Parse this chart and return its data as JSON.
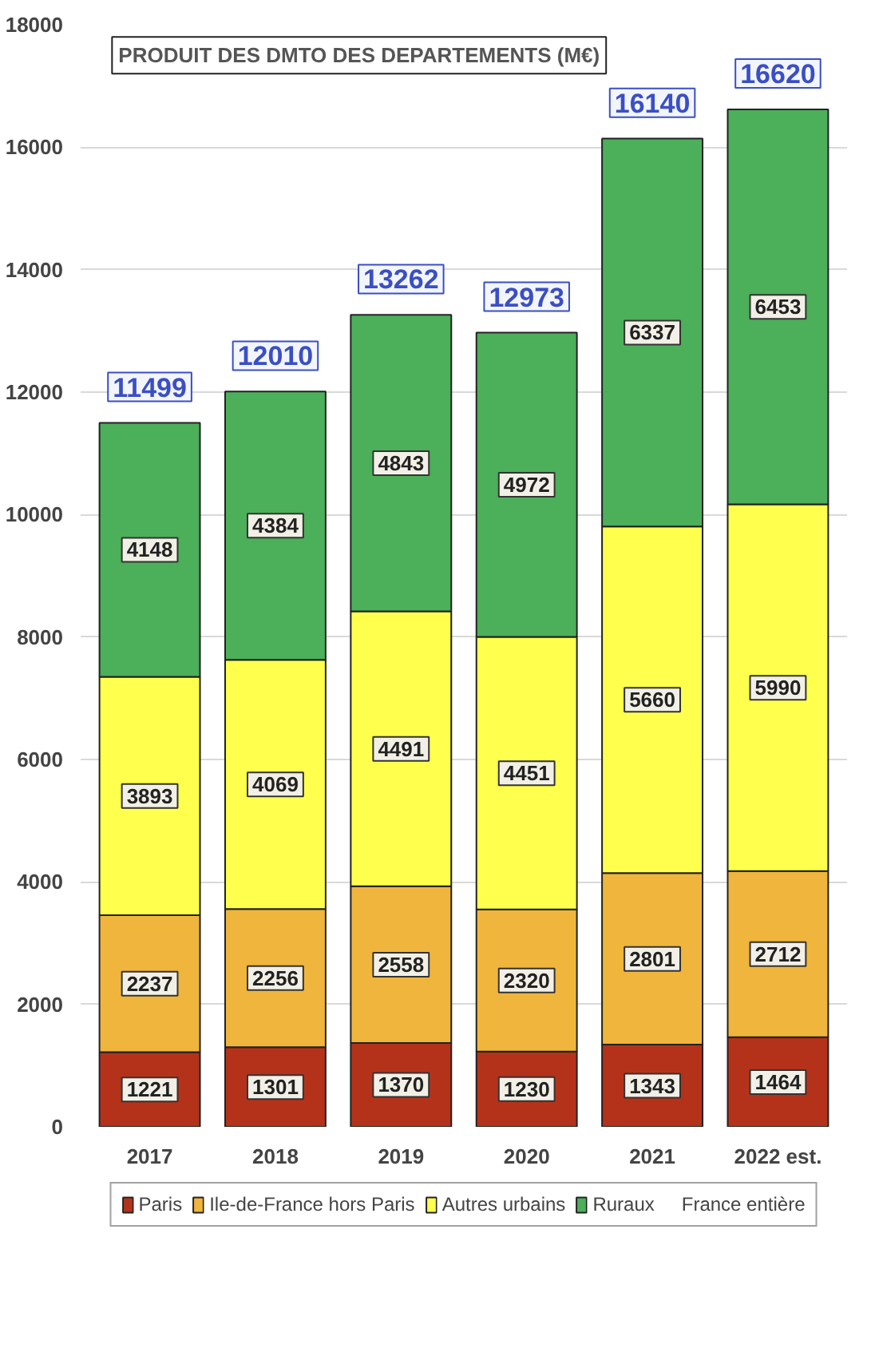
{
  "chart_data": {
    "type": "bar",
    "title": "PRODUIT DES DMTO DES DEPARTEMENTS (M€)",
    "categories": [
      "2017",
      "2018",
      "2019",
      "2020",
      "2021",
      "2022 est."
    ],
    "stacked": true,
    "series": [
      {
        "name": "Paris",
        "color": "#b5321a",
        "values": [
          1221,
          1301,
          1370,
          1230,
          1343,
          1464
        ]
      },
      {
        "name": "Ile-de-France hors Paris",
        "color": "#f0b53c",
        "values": [
          2237,
          2256,
          2558,
          2320,
          2801,
          2712
        ]
      },
      {
        "name": "Autres urbains",
        "color": "#ffff4d",
        "values": [
          3893,
          4069,
          4491,
          4451,
          5660,
          5990
        ]
      },
      {
        "name": "Ruraux",
        "color": "#4caf5a",
        "values": [
          4148,
          4384,
          4843,
          4972,
          6337,
          6453
        ]
      }
    ],
    "totals": [
      "11499",
      "12010",
      "13262",
      "12973",
      "16140",
      "16620"
    ],
    "annotations": [
      "France entière"
    ],
    "data_labels": true,
    "ylim": [
      0,
      18000
    ],
    "yticks": [
      0,
      2000,
      4000,
      6000,
      8000,
      10000,
      12000,
      14000,
      16000,
      18000
    ],
    "grid": "y",
    "legend": "bottom"
  }
}
